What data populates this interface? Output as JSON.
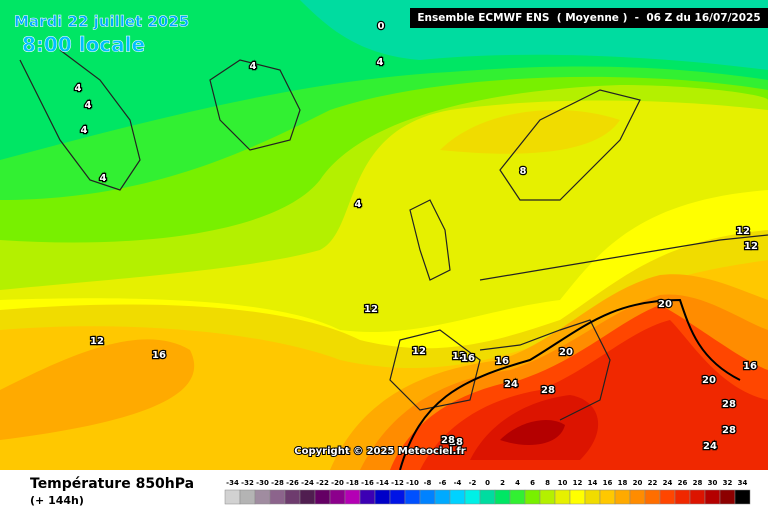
{
  "header": {
    "date": "Mardi 22 juillet 2025",
    "time": "8:00 locale",
    "run_info": "Ensemble ECMWF ENS  ( Moyenne )  -  06 Z du 16/07/2025"
  },
  "copyright": "Copyright © 2025 Meteociel.fr",
  "footer": {
    "title": "Température 850hPa",
    "forecast_hour": "(+ 144h)"
  },
  "contour_labels": [
    0,
    4,
    4,
    4,
    4,
    4,
    4,
    4,
    8,
    12,
    12,
    12,
    12,
    12,
    16,
    12,
    16,
    16,
    20,
    20,
    20,
    16,
    24,
    28,
    28,
    28,
    28,
    24,
    28
  ],
  "legend": {
    "labels": [
      -34,
      -32,
      -30,
      -28,
      -26,
      -24,
      -22,
      -20,
      -18,
      -16,
      -14,
      -12,
      -10,
      -8,
      -6,
      -4,
      -2,
      0,
      2,
      4,
      6,
      8,
      10,
      12,
      14,
      16,
      18,
      20,
      22,
      24,
      26,
      28,
      30,
      32,
      34
    ],
    "colors": [
      "#d2d2d2",
      "#b4b4b4",
      "#a08ca0",
      "#8c648c",
      "#6e3c6e",
      "#501e50",
      "#640064",
      "#8c008c",
      "#b400b4",
      "#3c00b4",
      "#0000c8",
      "#0014e6",
      "#0050ff",
      "#0082ff",
      "#00aaff",
      "#00d2ff",
      "#00f0e6",
      "#00dca0",
      "#00e664",
      "#32f032",
      "#78f000",
      "#b4f000",
      "#e6f000",
      "#ffff00",
      "#f0dc00",
      "#ffc800",
      "#ffaa00",
      "#ff8c00",
      "#ff6e00",
      "#ff4600",
      "#f02800",
      "#dc1400",
      "#b40000",
      "#8c0000",
      "#000000"
    ]
  }
}
